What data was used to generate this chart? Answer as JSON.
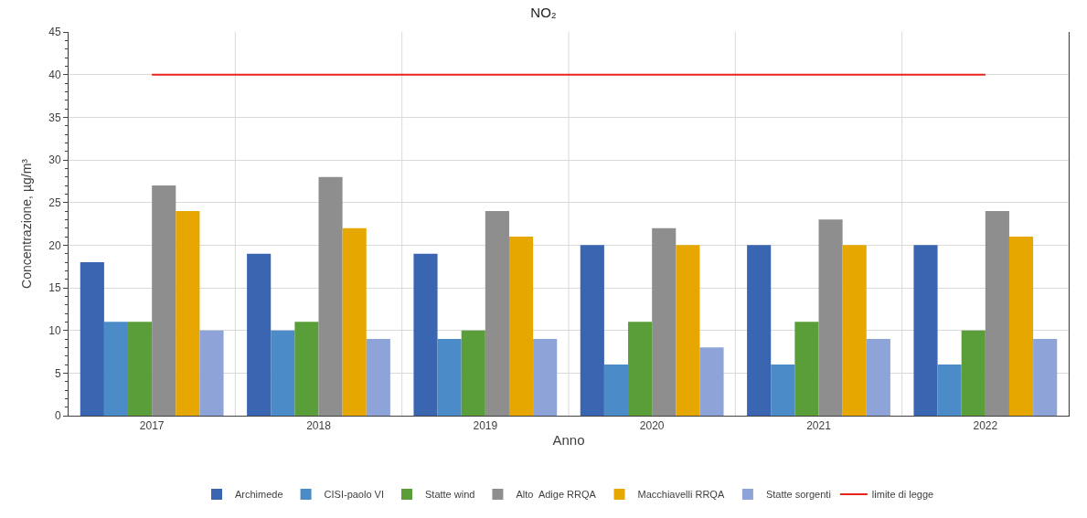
{
  "chart_data": {
    "type": "bar",
    "title": "NO₂",
    "xlabel": "Anno",
    "ylabel": "Concentrazione, µg/m³",
    "categories": [
      "2017",
      "2018",
      "2019",
      "2020",
      "2021",
      "2022"
    ],
    "series": [
      {
        "name": "Archimede",
        "color": "#3a65b0",
        "values": [
          18,
          19,
          19,
          20,
          20,
          20
        ]
      },
      {
        "name": "CISI-paolo VI",
        "color": "#4a8bc8",
        "values": [
          11,
          10,
          9,
          6,
          6,
          6
        ]
      },
      {
        "name": "Statte wind",
        "color": "#5a9e3a",
        "values": [
          11,
          11,
          10,
          11,
          11,
          10
        ]
      },
      {
        "name": "Alto  Adige RRQA",
        "color": "#8e8e8e",
        "values": [
          27,
          28,
          24,
          22,
          23,
          24
        ]
      },
      {
        "name": "Macchiavelli RRQA",
        "color": "#e6a800",
        "values": [
          24,
          22,
          21,
          20,
          20,
          21
        ]
      },
      {
        "name": "Statte sorgenti",
        "color": "#8ea3d8",
        "values": [
          10,
          9,
          9,
          8,
          9,
          9
        ]
      },
      {
        "name": "limite di legge",
        "type": "line",
        "color": "#e8231b",
        "values": [
          40,
          40,
          40,
          40,
          40,
          40
        ]
      }
    ],
    "ylim": [
      0,
      45
    ],
    "yticks": [
      0,
      5,
      10,
      15,
      20,
      25,
      30,
      35,
      40,
      45
    ],
    "grid": true,
    "legend": "bottom",
    "marker": "none",
    "line_style": "solid"
  }
}
